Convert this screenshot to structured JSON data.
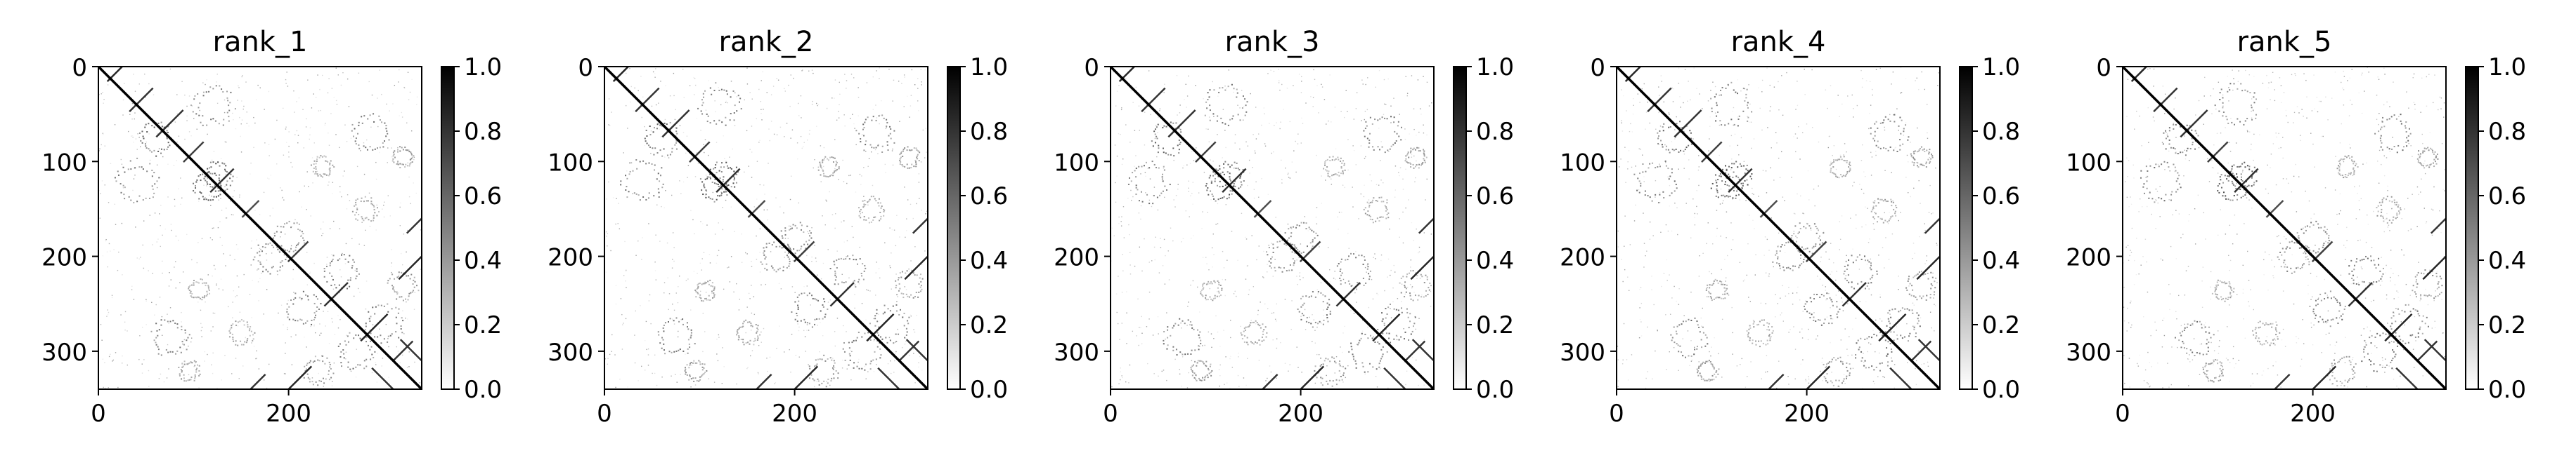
{
  "chart_data": [
    {
      "type": "heatmap",
      "title": "rank_1",
      "x_ticks": [
        0,
        200
      ],
      "y_ticks": [
        0,
        100,
        200,
        300
      ],
      "xlim": [
        0,
        340
      ],
      "ylim": [
        340,
        0
      ],
      "colorbar": {
        "ticks": [
          "0.0",
          "0.2",
          "0.4",
          "0.6",
          "0.8",
          "1.0"
        ],
        "range": [
          0.0,
          1.0
        ],
        "colormap": "greys"
      },
      "description_values": {
        "diagonal": 1.0,
        "background": 0.0
      },
      "contacts": [
        {
          "x": 20,
          "y": 5,
          "length": 30,
          "dir": "anti",
          "v": 0.85
        },
        {
          "x": 45,
          "y": 35,
          "length": 35,
          "dir": "anti",
          "v": 0.8
        },
        {
          "x": 75,
          "y": 60,
          "length": 40,
          "dir": "anti",
          "v": 0.8
        },
        {
          "x": 100,
          "y": 90,
          "length": 30,
          "dir": "anti",
          "v": 0.75
        },
        {
          "x": 130,
          "y": 120,
          "length": 35,
          "dir": "anti",
          "v": 0.8
        },
        {
          "x": 160,
          "y": 150,
          "length": 25,
          "dir": "anti",
          "v": 0.7
        },
        {
          "x": 210,
          "y": 195,
          "length": 30,
          "dir": "anti",
          "v": 0.75
        },
        {
          "x": 250,
          "y": 240,
          "length": 35,
          "dir": "anti",
          "v": 0.8
        },
        {
          "x": 290,
          "y": 275,
          "length": 40,
          "dir": "anti",
          "v": 0.85
        },
        {
          "x": 320,
          "y": 300,
          "length": 30,
          "dir": "anti",
          "v": 0.8
        },
        {
          "x": 330,
          "y": 210,
          "length": 40,
          "dir": "anti",
          "v": 0.85
        },
        {
          "x": 335,
          "y": 165,
          "length": 30,
          "dir": "anti",
          "v": 0.8
        },
        {
          "x": 210,
          "y": 330,
          "length": 40,
          "dir": "anti",
          "v": 0.85
        },
        {
          "x": 165,
          "y": 335,
          "length": 30,
          "dir": "anti",
          "v": 0.8
        },
        {
          "x": 300,
          "y": 330,
          "length": 35,
          "dir": "para",
          "v": 0.8
        },
        {
          "x": 330,
          "y": 300,
          "length": 35,
          "dir": "para",
          "v": 0.8
        }
      ],
      "clusters": [
        {
          "x": 285,
          "y": 70,
          "r": 18,
          "v": 0.5
        },
        {
          "x": 75,
          "y": 285,
          "r": 18,
          "v": 0.5
        },
        {
          "x": 115,
          "y": 125,
          "r": 14,
          "v": 0.6
        },
        {
          "x": 125,
          "y": 115,
          "r": 14,
          "v": 0.6
        },
        {
          "x": 60,
          "y": 75,
          "r": 16,
          "v": 0.55
        },
        {
          "x": 40,
          "y": 120,
          "r": 20,
          "v": 0.5
        },
        {
          "x": 120,
          "y": 40,
          "r": 20,
          "v": 0.5
        },
        {
          "x": 255,
          "y": 215,
          "r": 16,
          "v": 0.5
        },
        {
          "x": 215,
          "y": 255,
          "r": 16,
          "v": 0.5
        },
        {
          "x": 200,
          "y": 180,
          "r": 15,
          "v": 0.45
        },
        {
          "x": 180,
          "y": 200,
          "r": 15,
          "v": 0.45
        },
        {
          "x": 300,
          "y": 270,
          "r": 18,
          "v": 0.5
        },
        {
          "x": 270,
          "y": 300,
          "r": 18,
          "v": 0.5
        },
        {
          "x": 235,
          "y": 105,
          "r": 10,
          "v": 0.35
        },
        {
          "x": 105,
          "y": 235,
          "r": 10,
          "v": 0.35
        },
        {
          "x": 280,
          "y": 150,
          "r": 12,
          "v": 0.35
        },
        {
          "x": 150,
          "y": 280,
          "r": 12,
          "v": 0.35
        },
        {
          "x": 320,
          "y": 230,
          "r": 14,
          "v": 0.4
        },
        {
          "x": 230,
          "y": 320,
          "r": 14,
          "v": 0.4
        },
        {
          "x": 95,
          "y": 320,
          "r": 10,
          "v": 0.4
        },
        {
          "x": 320,
          "y": 95,
          "r": 10,
          "v": 0.4
        }
      ]
    },
    {
      "type": "heatmap",
      "title": "rank_2",
      "x_ticks": [
        0,
        200
      ],
      "y_ticks": [
        0,
        100,
        200,
        300
      ],
      "xlim": [
        0,
        340
      ],
      "ylim": [
        340,
        0
      ],
      "colorbar": {
        "ticks": [
          "0.0",
          "0.2",
          "0.4",
          "0.6",
          "0.8",
          "1.0"
        ],
        "range": [
          0.0,
          1.0
        ],
        "colormap": "greys"
      }
    },
    {
      "type": "heatmap",
      "title": "rank_3",
      "x_ticks": [
        0,
        200
      ],
      "y_ticks": [
        0,
        100,
        200,
        300
      ],
      "xlim": [
        0,
        340
      ],
      "ylim": [
        340,
        0
      ],
      "colorbar": {
        "ticks": [
          "0.0",
          "0.2",
          "0.4",
          "0.6",
          "0.8",
          "1.0"
        ],
        "range": [
          0.0,
          1.0
        ],
        "colormap": "greys"
      }
    },
    {
      "type": "heatmap",
      "title": "rank_4",
      "x_ticks": [
        0,
        200
      ],
      "y_ticks": [
        0,
        100,
        200,
        300
      ],
      "xlim": [
        0,
        340
      ],
      "ylim": [
        340,
        0
      ],
      "colorbar": {
        "ticks": [
          "0.0",
          "0.2",
          "0.4",
          "0.6",
          "0.8",
          "1.0"
        ],
        "range": [
          0.0,
          1.0
        ],
        "colormap": "greys"
      }
    },
    {
      "type": "heatmap",
      "title": "rank_5",
      "x_ticks": [
        0,
        200
      ],
      "y_ticks": [
        0,
        100,
        200,
        300
      ],
      "xlim": [
        0,
        340
      ],
      "ylim": [
        340,
        0
      ],
      "colorbar": {
        "ticks": [
          "0.0",
          "0.2",
          "0.4",
          "0.6",
          "0.8",
          "1.0"
        ],
        "range": [
          0.0,
          1.0
        ],
        "colormap": "greys"
      }
    }
  ]
}
